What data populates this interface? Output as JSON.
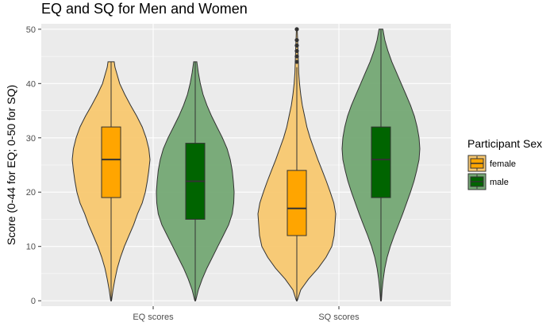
{
  "chart_data": {
    "type": "violin",
    "title": "EQ and SQ for Men and Women",
    "xlabel": "",
    "ylabel": "Score (0-44 for EQ; 0-50 for SQ)",
    "categories": [
      "EQ scores",
      "SQ scores"
    ],
    "ylim": [
      -1,
      51
    ],
    "yticks": [
      0,
      10,
      20,
      30,
      40,
      50
    ],
    "grid": true,
    "legend": {
      "title": "Participant Sex",
      "position": "right"
    },
    "series": [
      {
        "name": "female",
        "violin_color": "#f8c870",
        "box_color": "#ffa500",
        "groups": [
          {
            "category": "EQ scores",
            "box": {
              "q1": 19,
              "median": 26,
              "q3": 32,
              "whisker_low": 0,
              "whisker_high": 44
            },
            "outliers": [],
            "density": [
              [
                0,
                0.01
              ],
              [
                2,
                0.05
              ],
              [
                4,
                0.1
              ],
              [
                6,
                0.16
              ],
              [
                8,
                0.24
              ],
              [
                10,
                0.34
              ],
              [
                12,
                0.46
              ],
              [
                14,
                0.58
              ],
              [
                16,
                0.68
              ],
              [
                18,
                0.8
              ],
              [
                20,
                0.88
              ],
              [
                22,
                0.93
              ],
              [
                24,
                0.97
              ],
              [
                26,
                1.0
              ],
              [
                28,
                0.97
              ],
              [
                30,
                0.9
              ],
              [
                32,
                0.8
              ],
              [
                34,
                0.66
              ],
              [
                36,
                0.5
              ],
              [
                38,
                0.35
              ],
              [
                40,
                0.22
              ],
              [
                42,
                0.14
              ],
              [
                43,
                0.1
              ],
              [
                44,
                0.08
              ]
            ]
          },
          {
            "category": "SQ scores",
            "box": {
              "q1": 12,
              "median": 17,
              "q3": 24,
              "whisker_low": 0,
              "whisker_high": 43
            },
            "outliers": [
              44,
              45,
              46,
              47,
              48,
              50
            ],
            "density": [
              [
                0,
                0.01
              ],
              [
                2,
                0.1
              ],
              [
                4,
                0.3
              ],
              [
                6,
                0.55
              ],
              [
                8,
                0.75
              ],
              [
                10,
                0.9
              ],
              [
                12,
                0.96
              ],
              [
                14,
                0.98
              ],
              [
                16,
                1.0
              ],
              [
                18,
                0.95
              ],
              [
                20,
                0.86
              ],
              [
                22,
                0.76
              ],
              [
                24,
                0.65
              ],
              [
                26,
                0.54
              ],
              [
                28,
                0.44
              ],
              [
                30,
                0.34
              ],
              [
                32,
                0.26
              ],
              [
                34,
                0.2
              ],
              [
                36,
                0.14
              ],
              [
                38,
                0.1
              ],
              [
                40,
                0.07
              ],
              [
                42,
                0.05
              ],
              [
                44,
                0.04
              ],
              [
                46,
                0.03
              ],
              [
                48,
                0.02
              ],
              [
                50,
                0.01
              ]
            ]
          }
        ]
      },
      {
        "name": "male",
        "violin_color": "#74a874",
        "box_color": "#006400",
        "groups": [
          {
            "category": "EQ scores",
            "box": {
              "q1": 15,
              "median": 22,
              "q3": 29,
              "whisker_low": 0,
              "whisker_high": 44
            },
            "outliers": [],
            "density": [
              [
                0,
                0.01
              ],
              [
                2,
                0.08
              ],
              [
                4,
                0.18
              ],
              [
                6,
                0.3
              ],
              [
                8,
                0.44
              ],
              [
                10,
                0.58
              ],
              [
                12,
                0.72
              ],
              [
                14,
                0.86
              ],
              [
                16,
                0.95
              ],
              [
                18,
                0.99
              ],
              [
                20,
                1.0
              ],
              [
                22,
                0.98
              ],
              [
                24,
                0.95
              ],
              [
                26,
                0.9
              ],
              [
                28,
                0.82
              ],
              [
                30,
                0.7
              ],
              [
                32,
                0.56
              ],
              [
                34,
                0.42
              ],
              [
                36,
                0.3
              ],
              [
                38,
                0.2
              ],
              [
                40,
                0.13
              ],
              [
                42,
                0.08
              ],
              [
                44,
                0.04
              ]
            ]
          },
          {
            "category": "SQ scores",
            "box": {
              "q1": 19,
              "median": 26,
              "q3": 32,
              "whisker_low": 0,
              "whisker_high": 50
            },
            "outliers": [],
            "density": [
              [
                0,
                0.01
              ],
              [
                2,
                0.03
              ],
              [
                4,
                0.06
              ],
              [
                6,
                0.1
              ],
              [
                8,
                0.16
              ],
              [
                10,
                0.24
              ],
              [
                12,
                0.34
              ],
              [
                14,
                0.45
              ],
              [
                16,
                0.56
              ],
              [
                18,
                0.66
              ],
              [
                20,
                0.76
              ],
              [
                22,
                0.85
              ],
              [
                24,
                0.92
              ],
              [
                26,
                0.98
              ],
              [
                28,
                1.0
              ],
              [
                30,
                0.98
              ],
              [
                32,
                0.93
              ],
              [
                34,
                0.86
              ],
              [
                36,
                0.76
              ],
              [
                38,
                0.64
              ],
              [
                40,
                0.52
              ],
              [
                42,
                0.4
              ],
              [
                44,
                0.28
              ],
              [
                46,
                0.18
              ],
              [
                48,
                0.1
              ],
              [
                50,
                0.05
              ]
            ]
          }
        ]
      }
    ]
  }
}
